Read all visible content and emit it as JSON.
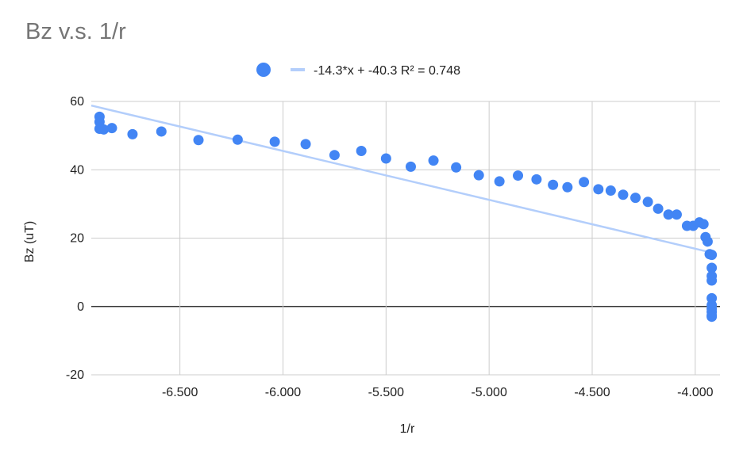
{
  "chart_data": {
    "type": "scatter",
    "title": "Bz v.s. 1/r",
    "xlabel": "1/r",
    "ylabel": "Bz (uT)",
    "xlim": [
      -6.93,
      -3.88
    ],
    "ylim": [
      -20,
      60
    ],
    "x_ticks": [
      -6.5,
      -6.0,
      -5.5,
      -5.0,
      -4.5,
      -4.0
    ],
    "x_tick_labels": [
      "-6.500",
      "-6.000",
      "-5.500",
      "-5.000",
      "-4.500",
      "-4.000"
    ],
    "y_ticks": [
      -20,
      0,
      20,
      40,
      60
    ],
    "y_tick_labels": [
      "-20",
      "0",
      "20",
      "40",
      "60"
    ],
    "grid": true,
    "legend_position": "top",
    "colors": {
      "points": "#4285f4",
      "trendline": "#b3cefb",
      "grid": "#cccccc",
      "zero_line": "#333333"
    },
    "series": [
      {
        "points": [
          [
            -6.89,
            55.5
          ],
          [
            -6.89,
            54.0
          ],
          [
            -6.89,
            52.0
          ],
          [
            -6.87,
            51.8
          ],
          [
            -6.83,
            52.2
          ],
          [
            -6.73,
            50.4
          ],
          [
            -6.59,
            51.2
          ],
          [
            -6.41,
            48.7
          ],
          [
            -6.22,
            48.8
          ],
          [
            -6.04,
            48.2
          ],
          [
            -5.89,
            47.5
          ],
          [
            -5.75,
            44.3
          ],
          [
            -5.62,
            45.5
          ],
          [
            -5.5,
            43.3
          ],
          [
            -5.38,
            40.9
          ],
          [
            -5.27,
            42.7
          ],
          [
            -5.16,
            40.7
          ],
          [
            -5.05,
            38.4
          ],
          [
            -4.95,
            36.6
          ],
          [
            -4.86,
            38.3
          ],
          [
            -4.77,
            37.2
          ],
          [
            -4.69,
            35.6
          ],
          [
            -4.62,
            34.9
          ],
          [
            -4.54,
            36.4
          ],
          [
            -4.47,
            34.3
          ],
          [
            -4.41,
            33.9
          ],
          [
            -4.35,
            32.7
          ],
          [
            -4.29,
            31.8
          ],
          [
            -4.23,
            30.6
          ],
          [
            -4.18,
            28.6
          ],
          [
            -4.13,
            26.9
          ],
          [
            -4.09,
            26.9
          ],
          [
            -4.04,
            23.6
          ],
          [
            -4.01,
            23.6
          ],
          [
            -3.98,
            24.6
          ],
          [
            -3.96,
            24.1
          ],
          [
            -3.95,
            20.3
          ],
          [
            -3.94,
            19.0
          ],
          [
            -3.93,
            15.3
          ],
          [
            -3.92,
            15.1
          ],
          [
            -3.92,
            11.3
          ],
          [
            -3.92,
            8.9
          ],
          [
            -3.92,
            7.6
          ],
          [
            -3.92,
            2.4
          ],
          [
            -3.92,
            0.4
          ],
          [
            -3.92,
            -0.7
          ],
          [
            -3.92,
            -1.6
          ],
          [
            -3.92,
            -2.6
          ],
          [
            -3.92,
            -3.0
          ]
        ]
      },
      {
        "name": "-14.3*x + -40.3 R² = 0.748",
        "type": "trendline",
        "slope": -14.3,
        "intercept": -40.3
      }
    ]
  }
}
